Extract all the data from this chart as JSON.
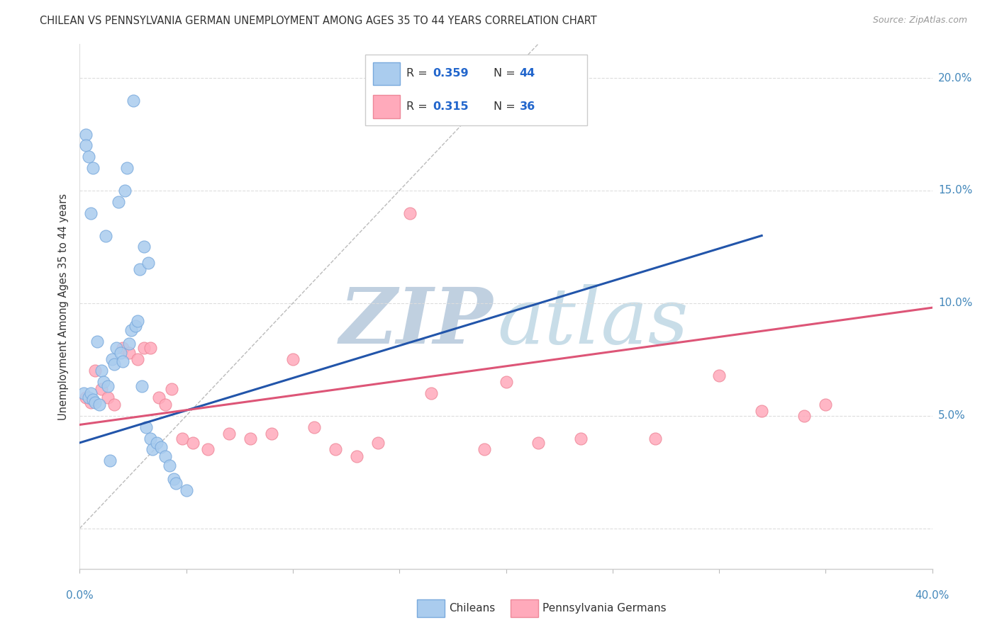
{
  "title": "CHILEAN VS PENNSYLVANIA GERMAN UNEMPLOYMENT AMONG AGES 35 TO 44 YEARS CORRELATION CHART",
  "source": "Source: ZipAtlas.com",
  "ylabel": "Unemployment Among Ages 35 to 44 years",
  "xmin": 0.0,
  "xmax": 0.4,
  "ymin": -0.018,
  "ymax": 0.215,
  "blue_scatter_color": "#aaccee",
  "blue_edge_color": "#7aaadd",
  "blue_line_color": "#2255aa",
  "pink_scatter_color": "#ffaabb",
  "pink_edge_color": "#ee8899",
  "pink_line_color": "#dd5577",
  "grid_color": "#dddddd",
  "ref_line_color": "#bbbbbb",
  "legend_R_blue": "0.359",
  "legend_N_blue": "44",
  "legend_R_pink": "0.315",
  "legend_N_pink": "36",
  "watermark_ZIP_color": "#c0d0e0",
  "watermark_atlas_color": "#c8dde8",
  "chileans_label": "Chileans",
  "pg_label": "Pennsylvania Germans",
  "blue_scatter_x": [
    0.002,
    0.003,
    0.003,
    0.004,
    0.004,
    0.005,
    0.005,
    0.006,
    0.006,
    0.007,
    0.008,
    0.009,
    0.01,
    0.011,
    0.012,
    0.013,
    0.014,
    0.015,
    0.016,
    0.017,
    0.018,
    0.019,
    0.02,
    0.021,
    0.022,
    0.023,
    0.024,
    0.025,
    0.026,
    0.027,
    0.028,
    0.029,
    0.03,
    0.031,
    0.032,
    0.033,
    0.034,
    0.036,
    0.038,
    0.04,
    0.042,
    0.044,
    0.045,
    0.05
  ],
  "blue_scatter_y": [
    0.06,
    0.175,
    0.17,
    0.165,
    0.058,
    0.14,
    0.06,
    0.16,
    0.057,
    0.056,
    0.083,
    0.055,
    0.07,
    0.065,
    0.13,
    0.063,
    0.03,
    0.075,
    0.073,
    0.08,
    0.145,
    0.078,
    0.074,
    0.15,
    0.16,
    0.082,
    0.088,
    0.19,
    0.09,
    0.092,
    0.115,
    0.063,
    0.125,
    0.045,
    0.118,
    0.04,
    0.035,
    0.038,
    0.036,
    0.032,
    0.028,
    0.022,
    0.02,
    0.017
  ],
  "pink_scatter_x": [
    0.003,
    0.005,
    0.007,
    0.01,
    0.013,
    0.016,
    0.02,
    0.023,
    0.027,
    0.03,
    0.033,
    0.037,
    0.04,
    0.043,
    0.048,
    0.053,
    0.06,
    0.07,
    0.08,
    0.09,
    0.1,
    0.11,
    0.12,
    0.13,
    0.14,
    0.155,
    0.165,
    0.19,
    0.2,
    0.215,
    0.235,
    0.27,
    0.3,
    0.32,
    0.34,
    0.35
  ],
  "pink_scatter_y": [
    0.058,
    0.056,
    0.07,
    0.062,
    0.058,
    0.055,
    0.08,
    0.078,
    0.075,
    0.08,
    0.08,
    0.058,
    0.055,
    0.062,
    0.04,
    0.038,
    0.035,
    0.042,
    0.04,
    0.042,
    0.075,
    0.045,
    0.035,
    0.032,
    0.038,
    0.14,
    0.06,
    0.035,
    0.065,
    0.038,
    0.04,
    0.04,
    0.068,
    0.052,
    0.05,
    0.055
  ],
  "blue_trend_x": [
    0.0,
    0.32
  ],
  "blue_trend_y": [
    0.038,
    0.13
  ],
  "pink_trend_x": [
    0.0,
    0.4
  ],
  "pink_trend_y": [
    0.046,
    0.098
  ],
  "ref_line_x": [
    0.0,
    0.215
  ],
  "ref_line_y": [
    0.0,
    0.215
  ],
  "yticks": [
    0.0,
    0.05,
    0.1,
    0.15,
    0.2
  ],
  "ytick_labels_right": [
    "",
    "5.0%",
    "10.0%",
    "15.0%",
    "20.0%"
  ],
  "xtick_positions": [
    0.0,
    0.05,
    0.1,
    0.15,
    0.2,
    0.25,
    0.3,
    0.35,
    0.4
  ],
  "axis_label_color": "#4488bb",
  "text_color": "#333333",
  "source_color": "#999999"
}
